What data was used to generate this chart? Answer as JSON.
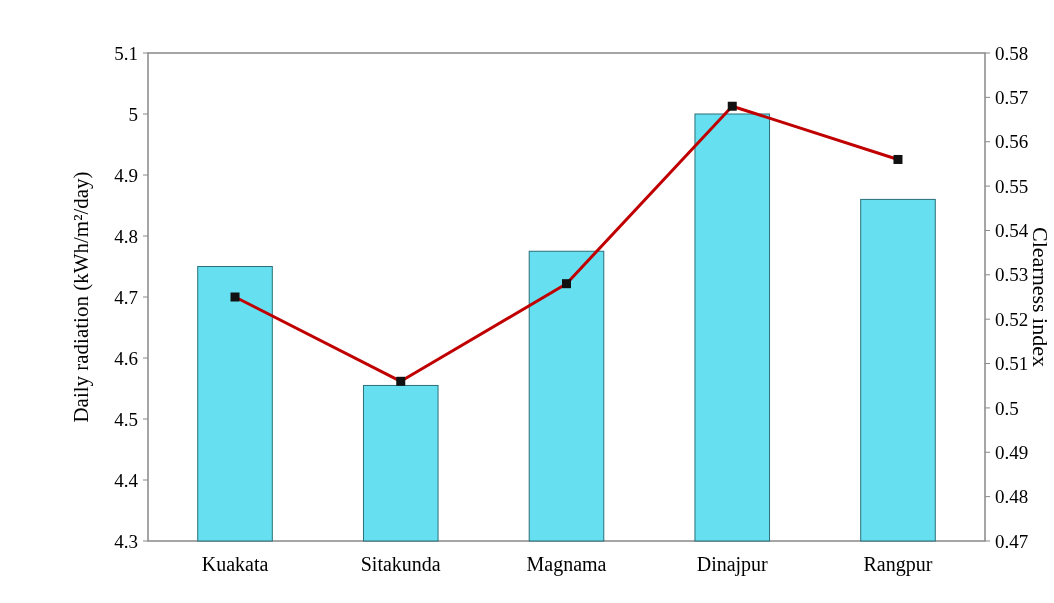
{
  "chart_data": {
    "type": "bar",
    "categories": [
      "Kuakata",
      "Sitakunda",
      "Magnama",
      "Dinajpur",
      "Rangpur"
    ],
    "ylabel": "Daily radiation (kWh/m²/day)",
    "y2label": "Clearness index",
    "ylim": [
      4.3,
      5.1
    ],
    "yticks": [
      4.3,
      4.4,
      4.5,
      4.6,
      4.7,
      4.8,
      4.9,
      5,
      5.1
    ],
    "y2lim": [
      0.47,
      0.58
    ],
    "y2ticks": [
      0.47,
      0.48,
      0.49,
      0.5,
      0.51,
      0.52,
      0.53,
      0.54,
      0.55,
      0.56,
      0.57,
      0.58
    ],
    "series": [
      {
        "color": "#66e0f0",
        "values": [
          4.75,
          4.555,
          4.775,
          5.0,
          4.86
        ]
      },
      {
        "type": "line",
        "axis": "y2",
        "color": "#c00000",
        "marker": "square",
        "line_style": "solid",
        "values": [
          0.525,
          0.506,
          0.528,
          0.568,
          0.556
        ]
      }
    ]
  }
}
